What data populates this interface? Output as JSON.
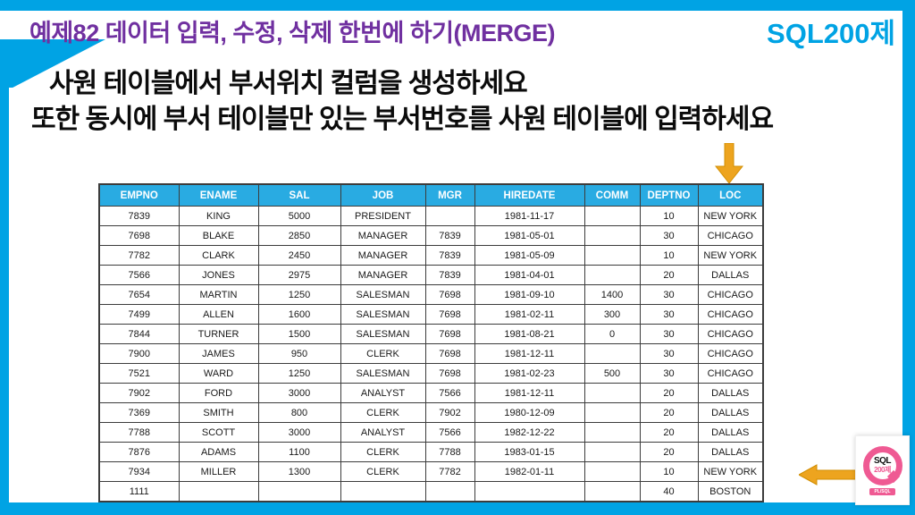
{
  "slide": {
    "title": "예제82 데이터 입력, 수정, 삭제 한번에 하기(MERGE)",
    "brand": "SQL200제",
    "instruction_line1": "사원 테이블에서 부서위치 컬럼을 생성하세요",
    "instruction_line2": "또한 동시에 부서 테이블만 있는 부서번호를 사원 테이블에 입력하세요"
  },
  "colors": {
    "frame_cyan": "#00A3E4",
    "header_blue": "#29ABE2",
    "title_purple": "#7030A0",
    "arrow_gold": "#EDA41F",
    "arrow_gold_edge": "#D18E00",
    "logo_pink": "#EF5A93"
  },
  "table": {
    "columns": [
      "EMPNO",
      "ENAME",
      "SAL",
      "JOB",
      "MGR",
      "HIREDATE",
      "COMM",
      "DEPTNO",
      "LOC"
    ],
    "rows": [
      [
        "7839",
        "KING",
        "5000",
        "PRESIDENT",
        "",
        "1981-11-17",
        "",
        "10",
        "NEW YORK"
      ],
      [
        "7698",
        "BLAKE",
        "2850",
        "MANAGER",
        "7839",
        "1981-05-01",
        "",
        "30",
        "CHICAGO"
      ],
      [
        "7782",
        "CLARK",
        "2450",
        "MANAGER",
        "7839",
        "1981-05-09",
        "",
        "10",
        "NEW YORK"
      ],
      [
        "7566",
        "JONES",
        "2975",
        "MANAGER",
        "7839",
        "1981-04-01",
        "",
        "20",
        "DALLAS"
      ],
      [
        "7654",
        "MARTIN",
        "1250",
        "SALESMAN",
        "7698",
        "1981-09-10",
        "1400",
        "30",
        "CHICAGO"
      ],
      [
        "7499",
        "ALLEN",
        "1600",
        "SALESMAN",
        "7698",
        "1981-02-11",
        "300",
        "30",
        "CHICAGO"
      ],
      [
        "7844",
        "TURNER",
        "1500",
        "SALESMAN",
        "7698",
        "1981-08-21",
        "0",
        "30",
        "CHICAGO"
      ],
      [
        "7900",
        "JAMES",
        "950",
        "CLERK",
        "7698",
        "1981-12-11",
        "",
        "30",
        "CHICAGO"
      ],
      [
        "7521",
        "WARD",
        "1250",
        "SALESMAN",
        "7698",
        "1981-02-23",
        "500",
        "30",
        "CHICAGO"
      ],
      [
        "7902",
        "FORD",
        "3000",
        "ANALYST",
        "7566",
        "1981-12-11",
        "",
        "20",
        "DALLAS"
      ],
      [
        "7369",
        "SMITH",
        "800",
        "CLERK",
        "7902",
        "1980-12-09",
        "",
        "20",
        "DALLAS"
      ],
      [
        "7788",
        "SCOTT",
        "3000",
        "ANALYST",
        "7566",
        "1982-12-22",
        "",
        "20",
        "DALLAS"
      ],
      [
        "7876",
        "ADAMS",
        "1100",
        "CLERK",
        "7788",
        "1983-01-15",
        "",
        "20",
        "DALLAS"
      ],
      [
        "7934",
        "MILLER",
        "1300",
        "CLERK",
        "7782",
        "1982-01-11",
        "",
        "10",
        "NEW YORK"
      ],
      [
        "1111",
        "",
        "",
        "",
        "",
        "",
        "",
        "40",
        "BOSTON"
      ]
    ]
  },
  "logo": {
    "line1": "SQL",
    "line2": "200제",
    "line3": "PL/SQL"
  }
}
